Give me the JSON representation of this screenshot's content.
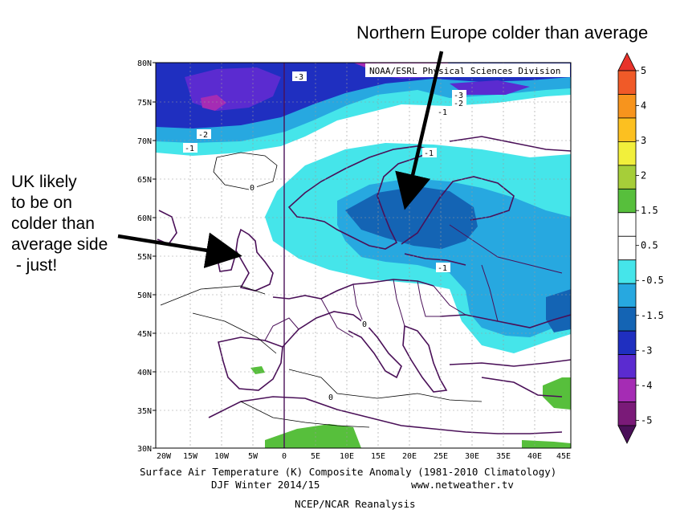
{
  "annotations": {
    "north": "Northern Europe colder than average",
    "uk_lines": [
      "UK likely",
      "to be on",
      "colder than",
      "average side",
      " - just!"
    ]
  },
  "map": {
    "credit": "NOAA/ESRL Physical Sciences Division",
    "lat_labels": [
      "80N",
      "75N",
      "70N",
      "65N",
      "60N",
      "55N",
      "50N",
      "45N",
      "40N",
      "35N",
      "30N"
    ],
    "lon_labels": [
      "20W",
      "15W",
      "10W",
      "5W",
      "0",
      "5E",
      "10E",
      "15E",
      "20E",
      "25E",
      "30E",
      "35E",
      "40E",
      "45E"
    ],
    "contour_labels": {
      "m3_top": "-3",
      "m3_right": "-3",
      "m2_right": "-2",
      "m1_right": "-1",
      "m2_left": "-2",
      "m1_left": "-1",
      "m1_scand": "-1",
      "zero_atl": "0",
      "m1_baltic": "-1",
      "zero_med": "0",
      "zero_africa": "0"
    }
  },
  "colorbar": {
    "labels": [
      "5",
      "4",
      "3",
      "2",
      "1.5",
      "0.5",
      "-0.5",
      "-1.5",
      "-3",
      "-4",
      "-5"
    ],
    "colors": [
      "#e8332b",
      "#f05a28",
      "#f7941d",
      "#fcc020",
      "#f2ef3b",
      "#a6ce39",
      "#57bf3c",
      "#ffffff",
      "#ffffff",
      "#45e5ea",
      "#27a8e0",
      "#1464b4",
      "#1f2fc0",
      "#5b2bd0",
      "#a52cb4",
      "#7a1a78",
      "#4a1058"
    ]
  },
  "captions": {
    "line1": "Surface Air Temperature (K) Composite Anomaly (1981-2010 Climatology)",
    "line2_left": "DJF Winter 2014/15",
    "line2_right": "www.netweather.tv",
    "line3": "NCEP/NCAR Reanalysis"
  }
}
